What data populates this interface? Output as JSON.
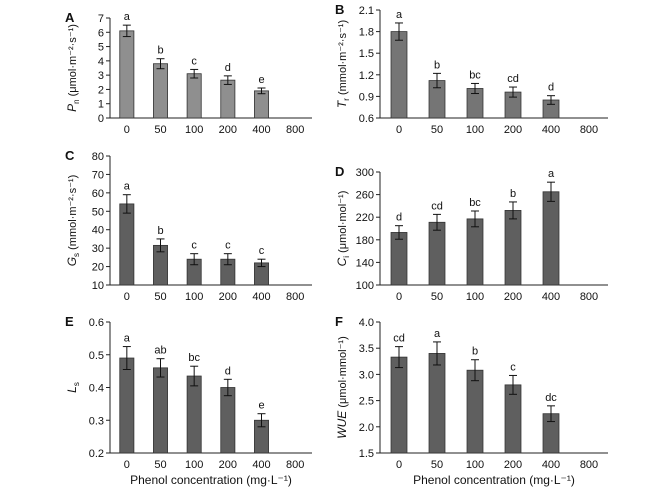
{
  "chart_data": [
    {
      "panel": "A",
      "type": "bar",
      "categories": [
        "0",
        "50",
        "100",
        "200",
        "400",
        "800"
      ],
      "values": [
        6.1,
        3.8,
        3.1,
        2.65,
        1.9,
        null
      ],
      "errors": [
        0.4,
        0.35,
        0.3,
        0.3,
        0.2,
        null
      ],
      "letters": [
        "a",
        "b",
        "c",
        "d",
        "e",
        ""
      ],
      "ylim": [
        0,
        7
      ],
      "yticks": [
        "0",
        "1",
        "2",
        "3",
        "4",
        "5",
        "6",
        "7"
      ],
      "ylabel_main": "P",
      "ylabel_sub": "n",
      "ylabel_unit": " (μmol·m⁻²·s⁻¹)",
      "xlabel": "",
      "bar_color": "#8f8f8f",
      "grid": false
    },
    {
      "panel": "B",
      "type": "bar",
      "categories": [
        "0",
        "50",
        "100",
        "200",
        "400",
        "800"
      ],
      "values": [
        1.8,
        1.12,
        1.01,
        0.96,
        0.85,
        null
      ],
      "errors": [
        0.12,
        0.1,
        0.07,
        0.07,
        0.06,
        null
      ],
      "letters": [
        "a",
        "b",
        "bc",
        "cd",
        "d",
        ""
      ],
      "ylim": [
        0.6,
        2.1
      ],
      "yticks": [
        "0.6",
        "0.9",
        "1.2",
        "1.5",
        "1.8",
        "2.1"
      ],
      "ylabel_main": "T",
      "ylabel_sub": "r",
      "ylabel_unit": " (mmol·m⁻²·s⁻¹)",
      "xlabel": "",
      "bar_color": "#757575",
      "grid": false
    },
    {
      "panel": "C",
      "type": "bar",
      "categories": [
        "0",
        "50",
        "100",
        "200",
        "400",
        "800"
      ],
      "values": [
        54,
        31.5,
        24,
        24,
        22,
        null
      ],
      "errors": [
        5,
        3.5,
        3,
        3,
        2,
        null
      ],
      "letters": [
        "a",
        "b",
        "c",
        "c",
        "c",
        ""
      ],
      "ylim": [
        10,
        80
      ],
      "yticks": [
        "10",
        "20",
        "30",
        "40",
        "50",
        "60",
        "70",
        "80"
      ],
      "ylabel_main": "G",
      "ylabel_sub": "s",
      "ylabel_unit": " (mmol·m⁻²·s⁻¹)",
      "xlabel": "",
      "bar_color": "#5f5f5f",
      "grid": false
    },
    {
      "panel": "D",
      "type": "bar",
      "categories": [
        "0",
        "50",
        "100",
        "200",
        "400",
        "800"
      ],
      "values": [
        193,
        211,
        217,
        232,
        265,
        null
      ],
      "errors": [
        12,
        14,
        14,
        15,
        17,
        null
      ],
      "letters": [
        "d",
        "cd",
        "bc",
        "b",
        "a",
        ""
      ],
      "ylim": [
        100,
        300
      ],
      "yticks": [
        "100",
        "140",
        "180",
        "220",
        "260",
        "300"
      ],
      "ylabel_main": "C",
      "ylabel_sub": "i",
      "ylabel_unit": " (μmol·mol⁻¹)",
      "xlabel": "",
      "bar_color": "#5f5f5f",
      "grid": false
    },
    {
      "panel": "E",
      "type": "bar",
      "categories": [
        "0",
        "50",
        "100",
        "200",
        "400",
        "800"
      ],
      "values": [
        0.49,
        0.46,
        0.435,
        0.4,
        0.3,
        null
      ],
      "errors": [
        0.035,
        0.028,
        0.03,
        0.025,
        0.02,
        null
      ],
      "letters": [
        "a",
        "ab",
        "bc",
        "d",
        "e",
        ""
      ],
      "ylim": [
        0.2,
        0.6
      ],
      "yticks": [
        "0.2",
        "0.3",
        "0.4",
        "0.5",
        "0.6"
      ],
      "ylabel_main": "L",
      "ylabel_sub": "s",
      "ylabel_unit": "",
      "xlabel": "Phenol concentration (mg·L⁻¹)",
      "bar_color": "#5f5f5f",
      "grid": false
    },
    {
      "panel": "F",
      "type": "bar",
      "categories": [
        "0",
        "50",
        "100",
        "200",
        "400",
        "800"
      ],
      "values": [
        3.33,
        3.4,
        3.08,
        2.8,
        2.25,
        null
      ],
      "errors": [
        0.2,
        0.22,
        0.2,
        0.18,
        0.15,
        null
      ],
      "letters": [
        "cd",
        "a",
        "b",
        "c",
        "dc",
        ""
      ],
      "ylim": [
        1.5,
        4.0
      ],
      "yticks": [
        "1.5",
        "2.0",
        "2.5",
        "3.0",
        "3.5",
        "4.0"
      ],
      "ylabel_main": "WUE",
      "ylabel_sub": "",
      "ylabel_unit": " (μmol·mmol⁻¹)",
      "xlabel": "Phenol concentration (mg·L⁻¹)",
      "bar_color": "#5f5f5f",
      "grid": false
    }
  ]
}
